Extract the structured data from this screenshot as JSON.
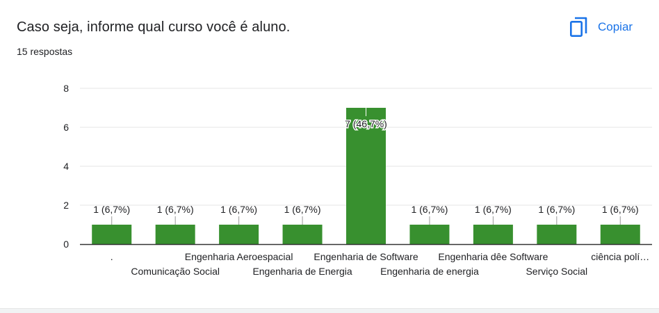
{
  "question": {
    "title": "Caso seja, informe qual curso você é aluno.",
    "response_count": "15 respostas"
  },
  "actions": {
    "copy_label": "Copiar",
    "copy_icon": "copy-icon"
  },
  "colors": {
    "bar": "#38902f",
    "accent": "#1a73e8",
    "gridline": "#e6e6e6",
    "axis": "#333333",
    "text": "#202124"
  },
  "chart_data": {
    "type": "bar",
    "categories": [
      ".",
      "Comunicação Social",
      "Engenharia Aeroespacial",
      "Engenharia de Energia",
      "Engenharia de Software",
      "Engenharia de energia",
      "Engenharia dêe Software",
      "Serviço Social",
      "ciência polí…"
    ],
    "values": [
      1,
      1,
      1,
      1,
      7,
      1,
      1,
      1,
      1
    ],
    "data_labels": [
      "1 (6,7%)",
      "1 (6,7%)",
      "1 (6,7%)",
      "1 (6,7%)",
      "7 (46,7%)",
      "1 (6,7%)",
      "1 (6,7%)",
      "1 (6,7%)",
      "1 (6,7%)"
    ],
    "yticks": [
      "0",
      "2",
      "4",
      "6",
      "8"
    ],
    "ylim": [
      0,
      8
    ],
    "grid": true,
    "legend": "none"
  }
}
